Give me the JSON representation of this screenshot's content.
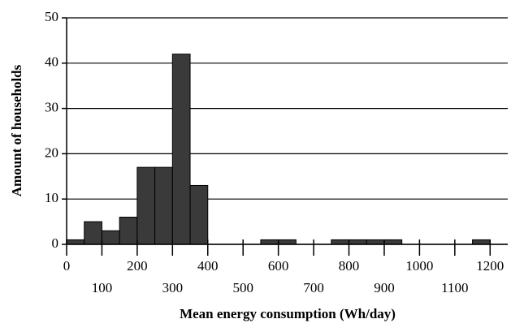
{
  "chart_data": {
    "type": "histogram",
    "x_label": "Mean energy consumption (Wh/day)",
    "y_label": "Amount of households",
    "bins": [
      0,
      50,
      100,
      150,
      200,
      250,
      300,
      350,
      400,
      450,
      500,
      550,
      600,
      650,
      700,
      750,
      800,
      850,
      900,
      950,
      1000,
      1050,
      1100,
      1150,
      1200
    ],
    "values": [
      1,
      5,
      3,
      6,
      17,
      17,
      42,
      13,
      0,
      0,
      0,
      1,
      1,
      0,
      0,
      1,
      1,
      1,
      1,
      0,
      0,
      0,
      0,
      1
    ],
    "color": "#3a3a3a",
    "xlim": [
      0,
      1250
    ],
    "xticks": [
      0,
      100,
      200,
      300,
      400,
      500,
      600,
      700,
      800,
      900,
      1000,
      1100,
      1200
    ],
    "ylim": [
      0,
      50
    ],
    "yticks": [
      0,
      10,
      20,
      30,
      40,
      50
    ],
    "grid": true
  }
}
